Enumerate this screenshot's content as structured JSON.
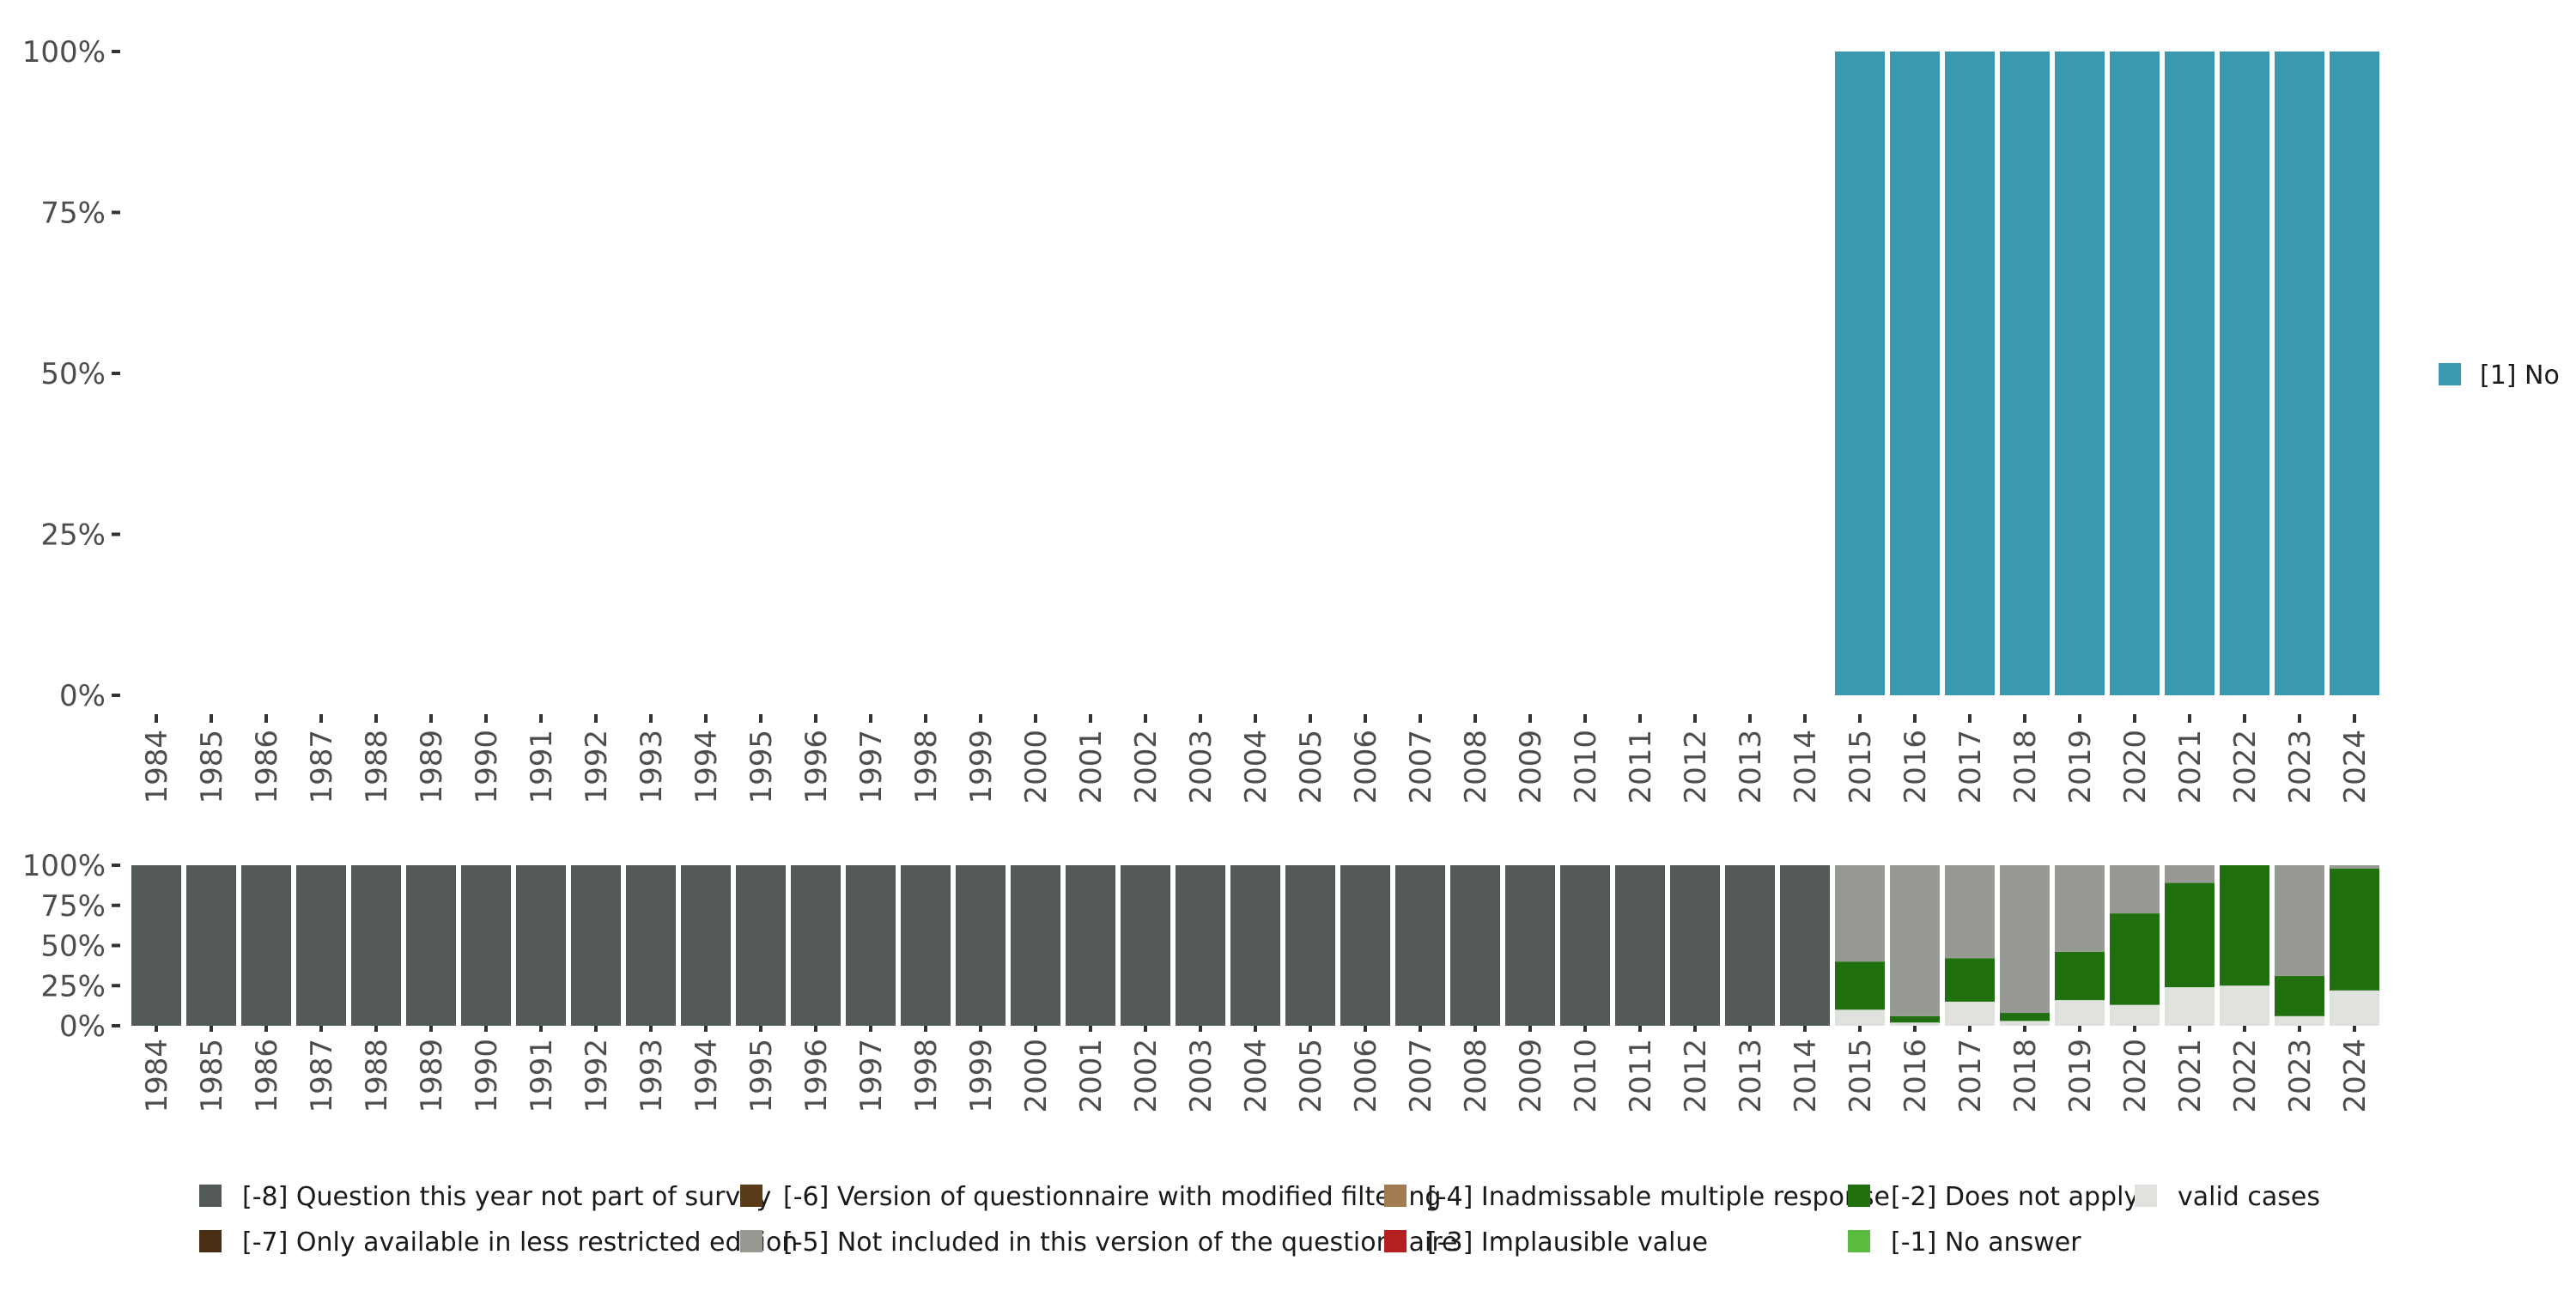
{
  "chart_data": [
    {
      "type": "bar",
      "stacked": true,
      "title": "",
      "xlabel": "",
      "ylabel": "",
      "ylim": [
        0,
        1
      ],
      "y_tick_labels": [
        "0%",
        "25%",
        "50%",
        "75%",
        "100%"
      ],
      "grid": false,
      "legend_position": "right",
      "categories": [
        "1984",
        "1985",
        "1986",
        "1987",
        "1988",
        "1989",
        "1990",
        "1991",
        "1992",
        "1993",
        "1994",
        "1995",
        "1996",
        "1997",
        "1998",
        "1999",
        "2000",
        "2001",
        "2002",
        "2003",
        "2004",
        "2005",
        "2006",
        "2007",
        "2008",
        "2009",
        "2010",
        "2011",
        "2012",
        "2013",
        "2014",
        "2015",
        "2016",
        "2017",
        "2018",
        "2019",
        "2020",
        "2021",
        "2022",
        "2023",
        "2024"
      ],
      "series": [
        {
          "name": "[1] No",
          "color": "#3a98b0",
          "values": [
            0,
            0,
            0,
            0,
            0,
            0,
            0,
            0,
            0,
            0,
            0,
            0,
            0,
            0,
            0,
            0,
            0,
            0,
            0,
            0,
            0,
            0,
            0,
            0,
            0,
            0,
            0,
            0,
            0,
            0,
            0,
            1,
            1,
            1,
            1,
            1,
            1,
            1,
            1,
            1,
            1
          ]
        }
      ]
    },
    {
      "type": "bar",
      "stacked": true,
      "title": "",
      "xlabel": "",
      "ylabel": "",
      "ylim": [
        0,
        1
      ],
      "y_tick_labels": [
        "0%",
        "25%",
        "50%",
        "75%",
        "100%"
      ],
      "grid": false,
      "legend_position": "bottom",
      "categories": [
        "1984",
        "1985",
        "1986",
        "1987",
        "1988",
        "1989",
        "1990",
        "1991",
        "1992",
        "1993",
        "1994",
        "1995",
        "1996",
        "1997",
        "1998",
        "1999",
        "2000",
        "2001",
        "2002",
        "2003",
        "2004",
        "2005",
        "2006",
        "2007",
        "2008",
        "2009",
        "2010",
        "2011",
        "2012",
        "2013",
        "2014",
        "2015",
        "2016",
        "2017",
        "2018",
        "2019",
        "2020",
        "2021",
        "2022",
        "2023",
        "2024"
      ],
      "series": [
        {
          "name": "valid cases",
          "color": "#dfe2dd",
          "values": [
            0,
            0,
            0,
            0,
            0,
            0,
            0,
            0,
            0,
            0,
            0,
            0,
            0,
            0,
            0,
            0,
            0,
            0,
            0,
            0,
            0,
            0,
            0,
            0,
            0,
            0,
            0,
            0,
            0,
            0,
            0,
            0.1,
            0.02,
            0.15,
            0.03,
            0.16,
            0.13,
            0.24,
            0.25,
            0.06,
            0.22
          ]
        },
        {
          "name": "[-1] No answer",
          "color": "#5bbd3e",
          "values": [
            0,
            0,
            0,
            0,
            0,
            0,
            0,
            0,
            0,
            0,
            0,
            0,
            0,
            0,
            0,
            0,
            0,
            0,
            0,
            0,
            0,
            0,
            0,
            0,
            0,
            0,
            0,
            0,
            0,
            0,
            0,
            0,
            0,
            0,
            0,
            0,
            0,
            0,
            0,
            0,
            0
          ]
        },
        {
          "name": "[-2] Does not apply",
          "color": "#21700f",
          "values": [
            0,
            0,
            0,
            0,
            0,
            0,
            0,
            0,
            0,
            0,
            0,
            0,
            0,
            0,
            0,
            0,
            0,
            0,
            0,
            0,
            0,
            0,
            0,
            0,
            0,
            0,
            0,
            0,
            0,
            0,
            0,
            0.3,
            0.04,
            0.27,
            0.05,
            0.3,
            0.57,
            0.65,
            0.75,
            0.25,
            0.76
          ]
        },
        {
          "name": "[-3] Implausible value",
          "color": "#b51f1f",
          "values": [
            0,
            0,
            0,
            0,
            0,
            0,
            0,
            0,
            0,
            0,
            0,
            0,
            0,
            0,
            0,
            0,
            0,
            0,
            0,
            0,
            0,
            0,
            0,
            0,
            0,
            0,
            0,
            0,
            0,
            0,
            0,
            0,
            0,
            0,
            0,
            0,
            0,
            0,
            0,
            0,
            0
          ]
        },
        {
          "name": "[-4] Inadmissable multiple response",
          "color": "#a07c50",
          "values": [
            0,
            0,
            0,
            0,
            0,
            0,
            0,
            0,
            0,
            0,
            0,
            0,
            0,
            0,
            0,
            0,
            0,
            0,
            0,
            0,
            0,
            0,
            0,
            0,
            0,
            0,
            0,
            0,
            0,
            0,
            0,
            0,
            0,
            0,
            0,
            0,
            0,
            0,
            0,
            0,
            0
          ]
        },
        {
          "name": "[-5] Not included in this version of the questionnaire",
          "color": "#969a93",
          "values": [
            0,
            0,
            0,
            0,
            0,
            0,
            0,
            0,
            0,
            0,
            0,
            0,
            0,
            0,
            0,
            0,
            0,
            0,
            0,
            0,
            0,
            0,
            0,
            0,
            0,
            0,
            0,
            0,
            0,
            0,
            0,
            0.6,
            0.94,
            0.58,
            0.92,
            0.54,
            0.3,
            0.11,
            0,
            0.69,
            0.02
          ]
        },
        {
          "name": "[-6] Version of questionnaire with modified filtering",
          "color": "#5b3a17",
          "values": [
            0,
            0,
            0,
            0,
            0,
            0,
            0,
            0,
            0,
            0,
            0,
            0,
            0,
            0,
            0,
            0,
            0,
            0,
            0,
            0,
            0,
            0,
            0,
            0,
            0,
            0,
            0,
            0,
            0,
            0,
            0,
            0,
            0,
            0,
            0,
            0,
            0,
            0,
            0,
            0,
            0
          ]
        },
        {
          "name": "[-7] Only available in less restricted edition",
          "color": "#4a2e14",
          "values": [
            0,
            0,
            0,
            0,
            0,
            0,
            0,
            0,
            0,
            0,
            0,
            0,
            0,
            0,
            0,
            0,
            0,
            0,
            0,
            0,
            0,
            0,
            0,
            0,
            0,
            0,
            0,
            0,
            0,
            0,
            0,
            0,
            0,
            0,
            0,
            0,
            0,
            0,
            0,
            0,
            0
          ]
        },
        {
          "name": "[-8] Question this year not part of survey",
          "color": "#545a55",
          "values": [
            1,
            1,
            1,
            1,
            1,
            1,
            1,
            1,
            1,
            1,
            1,
            1,
            1,
            1,
            1,
            1,
            1,
            1,
            1,
            1,
            1,
            1,
            1,
            1,
            1,
            1,
            1,
            1,
            1,
            1,
            1,
            0,
            0,
            0,
            0,
            0,
            0,
            0,
            0,
            0,
            0
          ]
        }
      ],
      "legend_order": [
        "[-8] Question this year not part of survey",
        "[-7] Only available in less restricted edition",
        "[-6] Version of questionnaire with modified filtering",
        "[-5] Not included in this version of the questionnaire",
        "[-4] Inadmissable multiple response",
        "[-3] Implausible value",
        "[-2] Does not apply",
        "[-1] No answer",
        "valid cases"
      ]
    }
  ]
}
